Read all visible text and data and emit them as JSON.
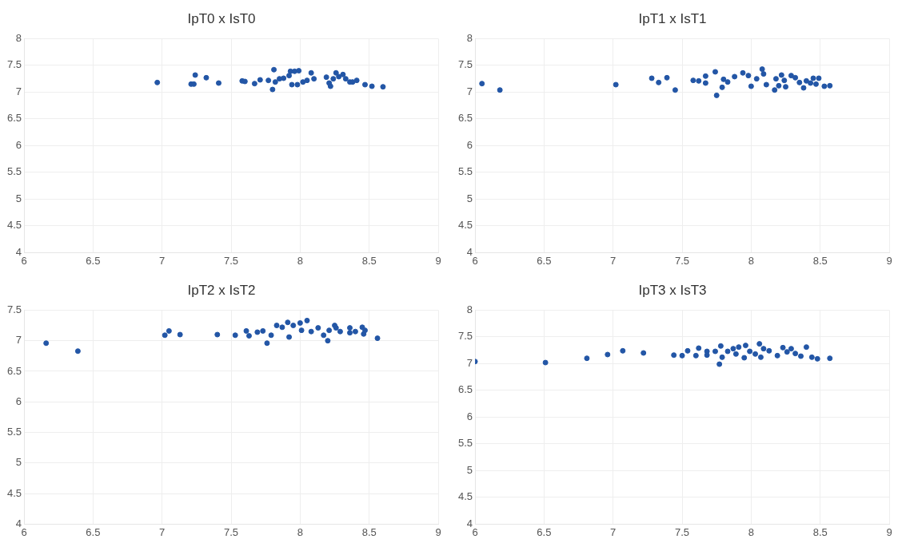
{
  "chart_data": [
    {
      "type": "scatter",
      "title": "IpT0 x IsT0",
      "color": "#2356a6",
      "marker": "circle",
      "grid": true,
      "xlim": [
        6,
        9
      ],
      "xticks": [
        6,
        6.5,
        7,
        7.5,
        8,
        8.5,
        9
      ],
      "ylim": [
        4,
        8
      ],
      "yticks": [
        4,
        4.5,
        5,
        5.5,
        6,
        6.5,
        7,
        7.5,
        8
      ],
      "x": [
        6.965,
        7.21,
        7.24,
        7.23,
        7.32,
        7.41,
        7.58,
        7.6,
        7.67,
        7.71,
        7.77,
        7.8,
        7.81,
        7.82,
        7.85,
        7.88,
        7.92,
        7.93,
        7.96,
        7.99,
        7.94,
        7.98,
        8.02,
        8.05,
        8.08,
        8.1,
        8.19,
        8.21,
        8.22,
        8.24,
        8.26,
        8.28,
        8.31,
        8.33,
        8.36,
        8.38,
        8.41,
        8.47,
        8.52,
        8.6
      ],
      "values": [
        7.18,
        7.15,
        7.32,
        7.15,
        7.27,
        7.17,
        7.21,
        7.2,
        7.16,
        7.23,
        7.22,
        7.05,
        7.42,
        7.19,
        7.25,
        7.26,
        7.31,
        7.39,
        7.39,
        7.4,
        7.14,
        7.14,
        7.19,
        7.22,
        7.36,
        7.25,
        7.28,
        7.17,
        7.11,
        7.25,
        7.36,
        7.29,
        7.33,
        7.25,
        7.19,
        7.19,
        7.22,
        7.14,
        7.11,
        7.1
      ]
    },
    {
      "type": "scatter",
      "title": "IpT1 x IsT1",
      "color": "#2356a6",
      "marker": "circle",
      "grid": true,
      "xlim": [
        6,
        9
      ],
      "xticks": [
        6,
        6.5,
        7,
        7.5,
        8,
        8.5,
        9
      ],
      "ylim": [
        4,
        8
      ],
      "yticks": [
        4,
        4.5,
        5,
        5.5,
        6,
        6.5,
        7,
        7.5,
        8
      ],
      "x": [
        6.05,
        6.18,
        7.02,
        7.28,
        7.33,
        7.39,
        7.45,
        7.58,
        7.62,
        7.67,
        7.67,
        7.74,
        7.75,
        7.79,
        7.8,
        7.83,
        7.88,
        7.94,
        7.98,
        8.0,
        8.04,
        8.08,
        8.09,
        8.11,
        8.17,
        8.18,
        8.2,
        8.22,
        8.24,
        8.25,
        8.29,
        8.32,
        8.35,
        8.38,
        8.4,
        8.43,
        8.45,
        8.47,
        8.49,
        8.53,
        8.57
      ],
      "values": [
        7.16,
        7.04,
        7.14,
        7.26,
        7.18,
        7.27,
        7.04,
        7.22,
        7.21,
        7.3,
        7.17,
        7.38,
        6.94,
        7.09,
        7.24,
        7.19,
        7.29,
        7.36,
        7.31,
        7.11,
        7.25,
        7.43,
        7.34,
        7.14,
        7.04,
        7.25,
        7.12,
        7.32,
        7.22,
        7.1,
        7.31,
        7.27,
        7.18,
        7.08,
        7.21,
        7.17,
        7.26,
        7.15,
        7.26,
        7.11,
        7.12
      ]
    },
    {
      "type": "scatter",
      "title": "IpT2 x IsT2",
      "color": "#2356a6",
      "marker": "circle",
      "grid": true,
      "xlim": [
        6,
        9
      ],
      "xticks": [
        6,
        6.5,
        7,
        7.5,
        8,
        8.5,
        9
      ],
      "ylim": [
        4,
        7.5
      ],
      "yticks": [
        4,
        4.5,
        5,
        5.5,
        6,
        6.5,
        7,
        7.5
      ],
      "x": [
        6.16,
        6.39,
        7.02,
        7.05,
        7.13,
        7.4,
        7.53,
        7.61,
        7.63,
        7.69,
        7.73,
        7.76,
        7.79,
        7.83,
        7.87,
        7.91,
        7.92,
        7.95,
        8.0,
        8.01,
        8.05,
        8.08,
        8.13,
        8.17,
        8.2,
        8.21,
        8.25,
        8.26,
        8.29,
        8.36,
        8.36,
        8.4,
        8.45,
        8.46,
        8.47,
        8.56
      ],
      "values": [
        6.96,
        6.83,
        7.09,
        7.16,
        7.1,
        7.1,
        7.09,
        7.16,
        7.08,
        7.14,
        7.16,
        6.96,
        7.09,
        7.25,
        7.22,
        7.3,
        7.06,
        7.25,
        7.29,
        7.17,
        7.33,
        7.15,
        7.21,
        7.09,
        7.0,
        7.17,
        7.25,
        7.21,
        7.15,
        7.21,
        7.13,
        7.15,
        7.22,
        7.11,
        7.17,
        7.04
      ]
    },
    {
      "type": "scatter",
      "title": "IpT3 x IsT3",
      "color": "#2356a6",
      "marker": "circle",
      "grid": true,
      "xlim": [
        6,
        9
      ],
      "xticks": [
        6,
        6.5,
        7,
        7.5,
        8,
        8.5,
        9
      ],
      "ylim": [
        4,
        8
      ],
      "yticks": [
        4,
        4.5,
        5,
        5.5,
        6,
        6.5,
        7,
        7.5,
        8
      ],
      "x": [
        6.0,
        6.51,
        6.81,
        6.96,
        7.07,
        7.22,
        7.44,
        7.5,
        7.54,
        7.6,
        7.62,
        7.68,
        7.68,
        7.74,
        7.77,
        7.78,
        7.79,
        7.83,
        7.87,
        7.89,
        7.91,
        7.95,
        7.96,
        7.99,
        8.03,
        8.06,
        8.07,
        8.09,
        8.13,
        8.19,
        8.23,
        8.26,
        8.29,
        8.32,
        8.36,
        8.4,
        8.44,
        8.48,
        8.57
      ],
      "values": [
        7.04,
        7.02,
        7.1,
        7.17,
        7.24,
        7.2,
        7.16,
        7.15,
        7.24,
        7.15,
        7.29,
        7.16,
        7.23,
        7.23,
        6.99,
        7.33,
        7.12,
        7.23,
        7.28,
        7.18,
        7.31,
        7.11,
        7.34,
        7.23,
        7.18,
        7.37,
        7.12,
        7.28,
        7.24,
        7.15,
        7.3,
        7.22,
        7.28,
        7.19,
        7.14,
        7.31,
        7.12,
        7.09,
        7.1
      ]
    }
  ]
}
